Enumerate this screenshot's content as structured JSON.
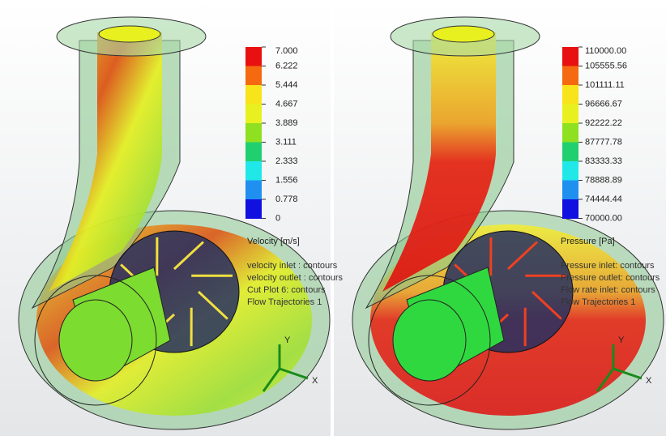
{
  "panels": [
    {
      "legend": {
        "title": "Velocity [m/s]",
        "labels": [
          "7.000",
          "6.222",
          "5.444",
          "4.667",
          "3.889",
          "3.111",
          "2.333",
          "1.556",
          "0.778",
          "0"
        ],
        "colors": [
          "#e81010",
          "#f56a10",
          "#f7e41a",
          "#e8f020",
          "#8fe020",
          "#20d070",
          "#20e8e8",
          "#2090f0",
          "#1010e0"
        ]
      },
      "annotations": [
        "velocity inlet : contours",
        "velocity outlet : contours",
        "Cut Plot 6: contours",
        "Flow Trajectories 1"
      ],
      "axes": {
        "y": "Y",
        "x": "X"
      }
    },
    {
      "legend": {
        "title": "Pressure [Pa]",
        "labels": [
          "110000.00",
          "105555.56",
          "101111.11",
          "96666.67",
          "92222.22",
          "87777.78",
          "83333.33",
          "78888.89",
          "74444.44",
          "70000.00"
        ],
        "colors": [
          "#e81010",
          "#f56a10",
          "#f7e41a",
          "#e8f020",
          "#8fe020",
          "#20d070",
          "#20e8e8",
          "#2090f0",
          "#1010e0"
        ]
      },
      "annotations": [
        "Pressure inlet: contours",
        "Pressure outlet: contours",
        "Flow rate inlet: contours",
        "Flow Trajectories 1"
      ],
      "axes": {
        "y": "Y",
        "x": "X"
      }
    }
  ]
}
